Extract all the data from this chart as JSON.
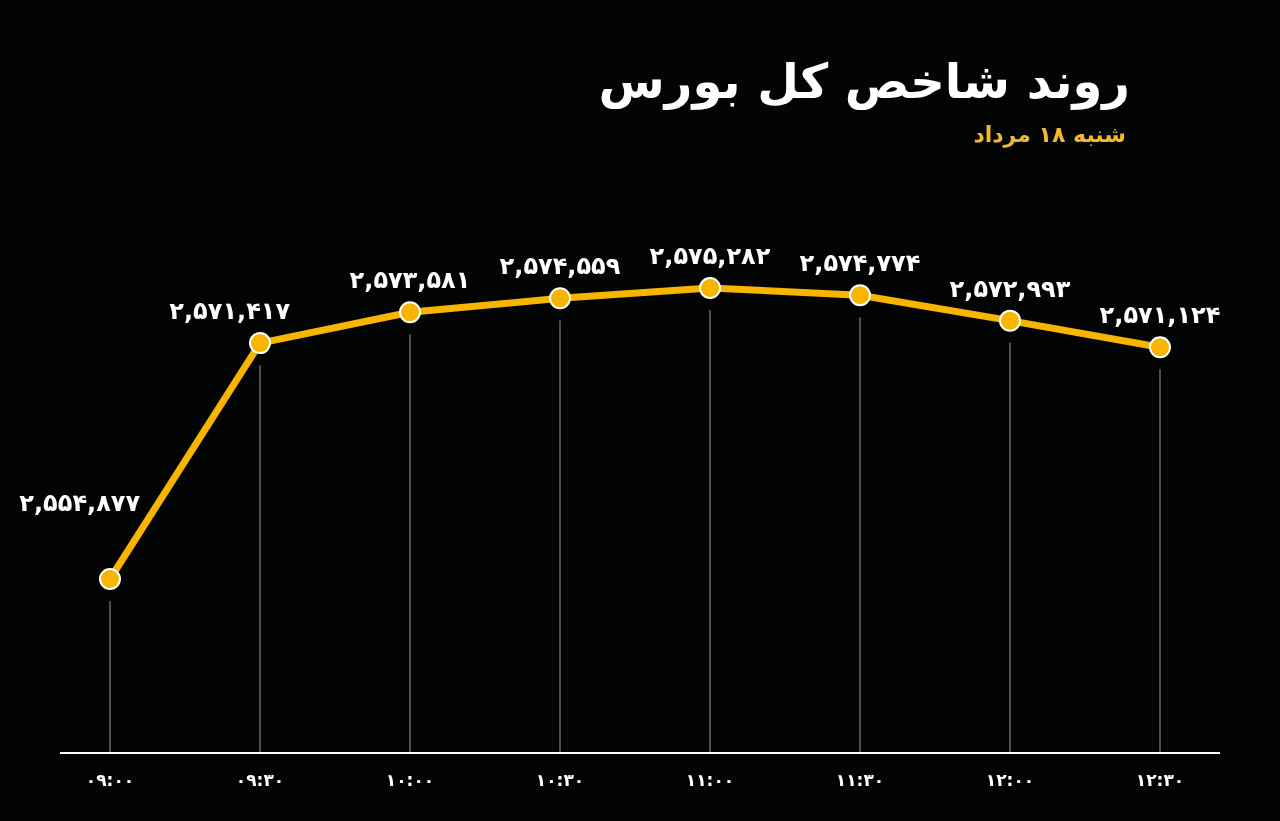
{
  "chart_data": {
    "type": "line",
    "title": "روند شاخص کل بورس",
    "subtitle": "شنبه ۱۸ مرداد",
    "categories": [
      "۰۹:۰۰",
      "۰۹:۳۰",
      "۱۰:۰۰",
      "۱۰:۳۰",
      "۱۱:۰۰",
      "۱۱:۳۰",
      "۱۲:۰۰",
      "۱۲:۳۰"
    ],
    "series": [
      {
        "color": "#f7b500",
        "values": [
          2554877,
          2571417,
          2573581,
          2574559,
          2575282,
          2574774,
          2572993,
          2571124
        ],
        "value_labels": [
          "۲,۵۵۴,۸۷۷",
          "۲,۵۷۱,۴۱۷",
          "۲,۵۷۳,۵۸۱",
          "۲,۵۷۴,۵۵۹",
          "۲,۵۷۵,۲۸۲",
          "۲,۵۷۴,۷۷۴",
          "۲,۵۷۲,۹۹۳",
          "۲,۵۷۱,۱۲۴"
        ]
      }
    ],
    "tick_labels": "x",
    "grid": "x",
    "marker": "circle",
    "line_style": "solid"
  }
}
